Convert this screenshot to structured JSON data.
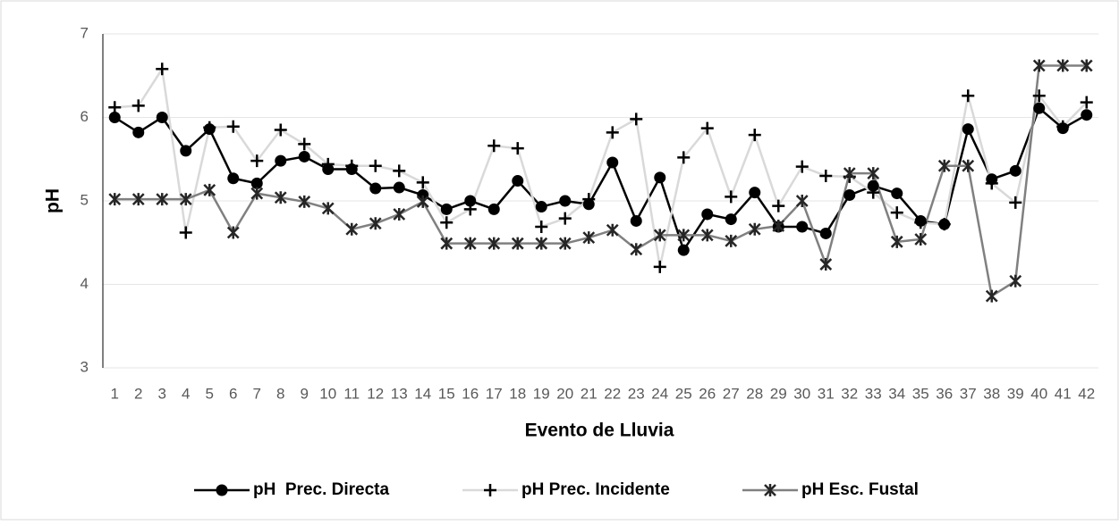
{
  "chart_data": {
    "type": "line",
    "x_label": "Evento de Lluvia",
    "y_label": "pH",
    "categories": [
      "1",
      "2",
      "3",
      "4",
      "5",
      "6",
      "7",
      "8",
      "9",
      "10",
      "11",
      "12",
      "13",
      "14",
      "15",
      "16",
      "17",
      "18",
      "19",
      "20",
      "21",
      "22",
      "23",
      "24",
      "25",
      "26",
      "27",
      "28",
      "29",
      "30",
      "31",
      "32",
      "33",
      "34",
      "35",
      "36",
      "37",
      "38",
      "39",
      "40",
      "41",
      "42"
    ],
    "ylim": [
      3,
      7
    ],
    "yticks": [
      3,
      4,
      5,
      6,
      7
    ],
    "grid": true,
    "legend": "bottom",
    "series": [
      {
        "name": "pH  Prec. Directa",
        "color": "#000000",
        "marker": "circle",
        "values": [
          6.0,
          5.82,
          6.0,
          5.6,
          5.86,
          5.27,
          5.21,
          5.48,
          5.53,
          5.38,
          5.38,
          5.15,
          5.16,
          5.07,
          4.9,
          5.0,
          4.9,
          5.24,
          4.93,
          5.0,
          4.96,
          5.46,
          4.76,
          5.28,
          4.41,
          4.84,
          4.78,
          5.1,
          4.69,
          4.69,
          4.61,
          5.07,
          5.18,
          5.09,
          4.76,
          4.72,
          5.86,
          5.26,
          5.36,
          6.11,
          5.87,
          6.03
        ]
      },
      {
        "name": "pH Prec. Incidente",
        "color": "#d9d9d9",
        "marker": "plus",
        "values": [
          6.12,
          6.14,
          6.58,
          4.62,
          5.88,
          5.89,
          5.48,
          5.85,
          5.68,
          5.44,
          5.42,
          5.42,
          5.36,
          5.22,
          4.74,
          4.9,
          5.66,
          5.63,
          4.69,
          4.79,
          5.02,
          5.82,
          5.98,
          4.21,
          5.52,
          5.87,
          5.05,
          5.79,
          4.94,
          5.41,
          5.3,
          5.29,
          5.1,
          4.86,
          4.74,
          4.72,
          6.26,
          5.21,
          4.98,
          6.26,
          5.89,
          6.18
        ]
      },
      {
        "name": "pH Esc. Fustal",
        "color": "#808080",
        "marker": "asterisk",
        "values": [
          5.02,
          5.02,
          5.02,
          5.02,
          5.13,
          4.62,
          5.09,
          5.04,
          4.99,
          4.91,
          4.66,
          4.73,
          4.84,
          4.99,
          4.49,
          4.49,
          4.49,
          4.49,
          4.49,
          4.49,
          4.56,
          4.65,
          4.42,
          4.59,
          4.59,
          4.59,
          4.52,
          4.66,
          4.7,
          5.0,
          4.24,
          5.33,
          5.33,
          4.51,
          4.54,
          5.42,
          5.42,
          3.86,
          4.04,
          6.62,
          6.62,
          6.62
        ]
      }
    ]
  }
}
